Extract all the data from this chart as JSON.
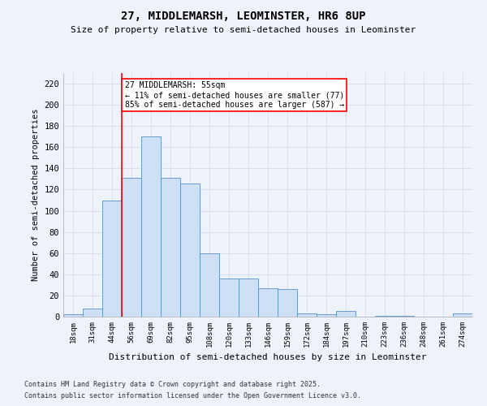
{
  "title1": "27, MIDDLEMARSH, LEOMINSTER, HR6 8UP",
  "title2": "Size of property relative to semi-detached houses in Leominster",
  "xlabel": "Distribution of semi-detached houses by size in Leominster",
  "ylabel": "Number of semi-detached properties",
  "categories": [
    "18sqm",
    "31sqm",
    "44sqm",
    "56sqm",
    "69sqm",
    "82sqm",
    "95sqm",
    "108sqm",
    "120sqm",
    "133sqm",
    "146sqm",
    "159sqm",
    "172sqm",
    "184sqm",
    "197sqm",
    "210sqm",
    "223sqm",
    "236sqm",
    "248sqm",
    "261sqm",
    "274sqm"
  ],
  "values": [
    2,
    8,
    110,
    131,
    170,
    131,
    126,
    60,
    36,
    36,
    27,
    26,
    3,
    2,
    5,
    0,
    1,
    1,
    0,
    0,
    3
  ],
  "bar_color": "#cde0f5",
  "bar_edge_color": "#5a8ec5",
  "annotation_title": "27 MIDDLEMARSH: 55sqm",
  "annotation_line1": "← 11% of semi-detached houses are smaller (77)",
  "annotation_line2": "85% of semi-detached houses are larger (587) →",
  "red_line_index": 3,
  "footer1": "Contains HM Land Registry data © Crown copyright and database right 2025.",
  "footer2": "Contains public sector information licensed under the Open Government Licence v3.0.",
  "ylim": [
    0,
    230
  ],
  "yticks": [
    0,
    20,
    40,
    60,
    80,
    100,
    120,
    140,
    160,
    180,
    200,
    220
  ],
  "background_color": "#eef2fa",
  "grid_color": "#d8dde8"
}
